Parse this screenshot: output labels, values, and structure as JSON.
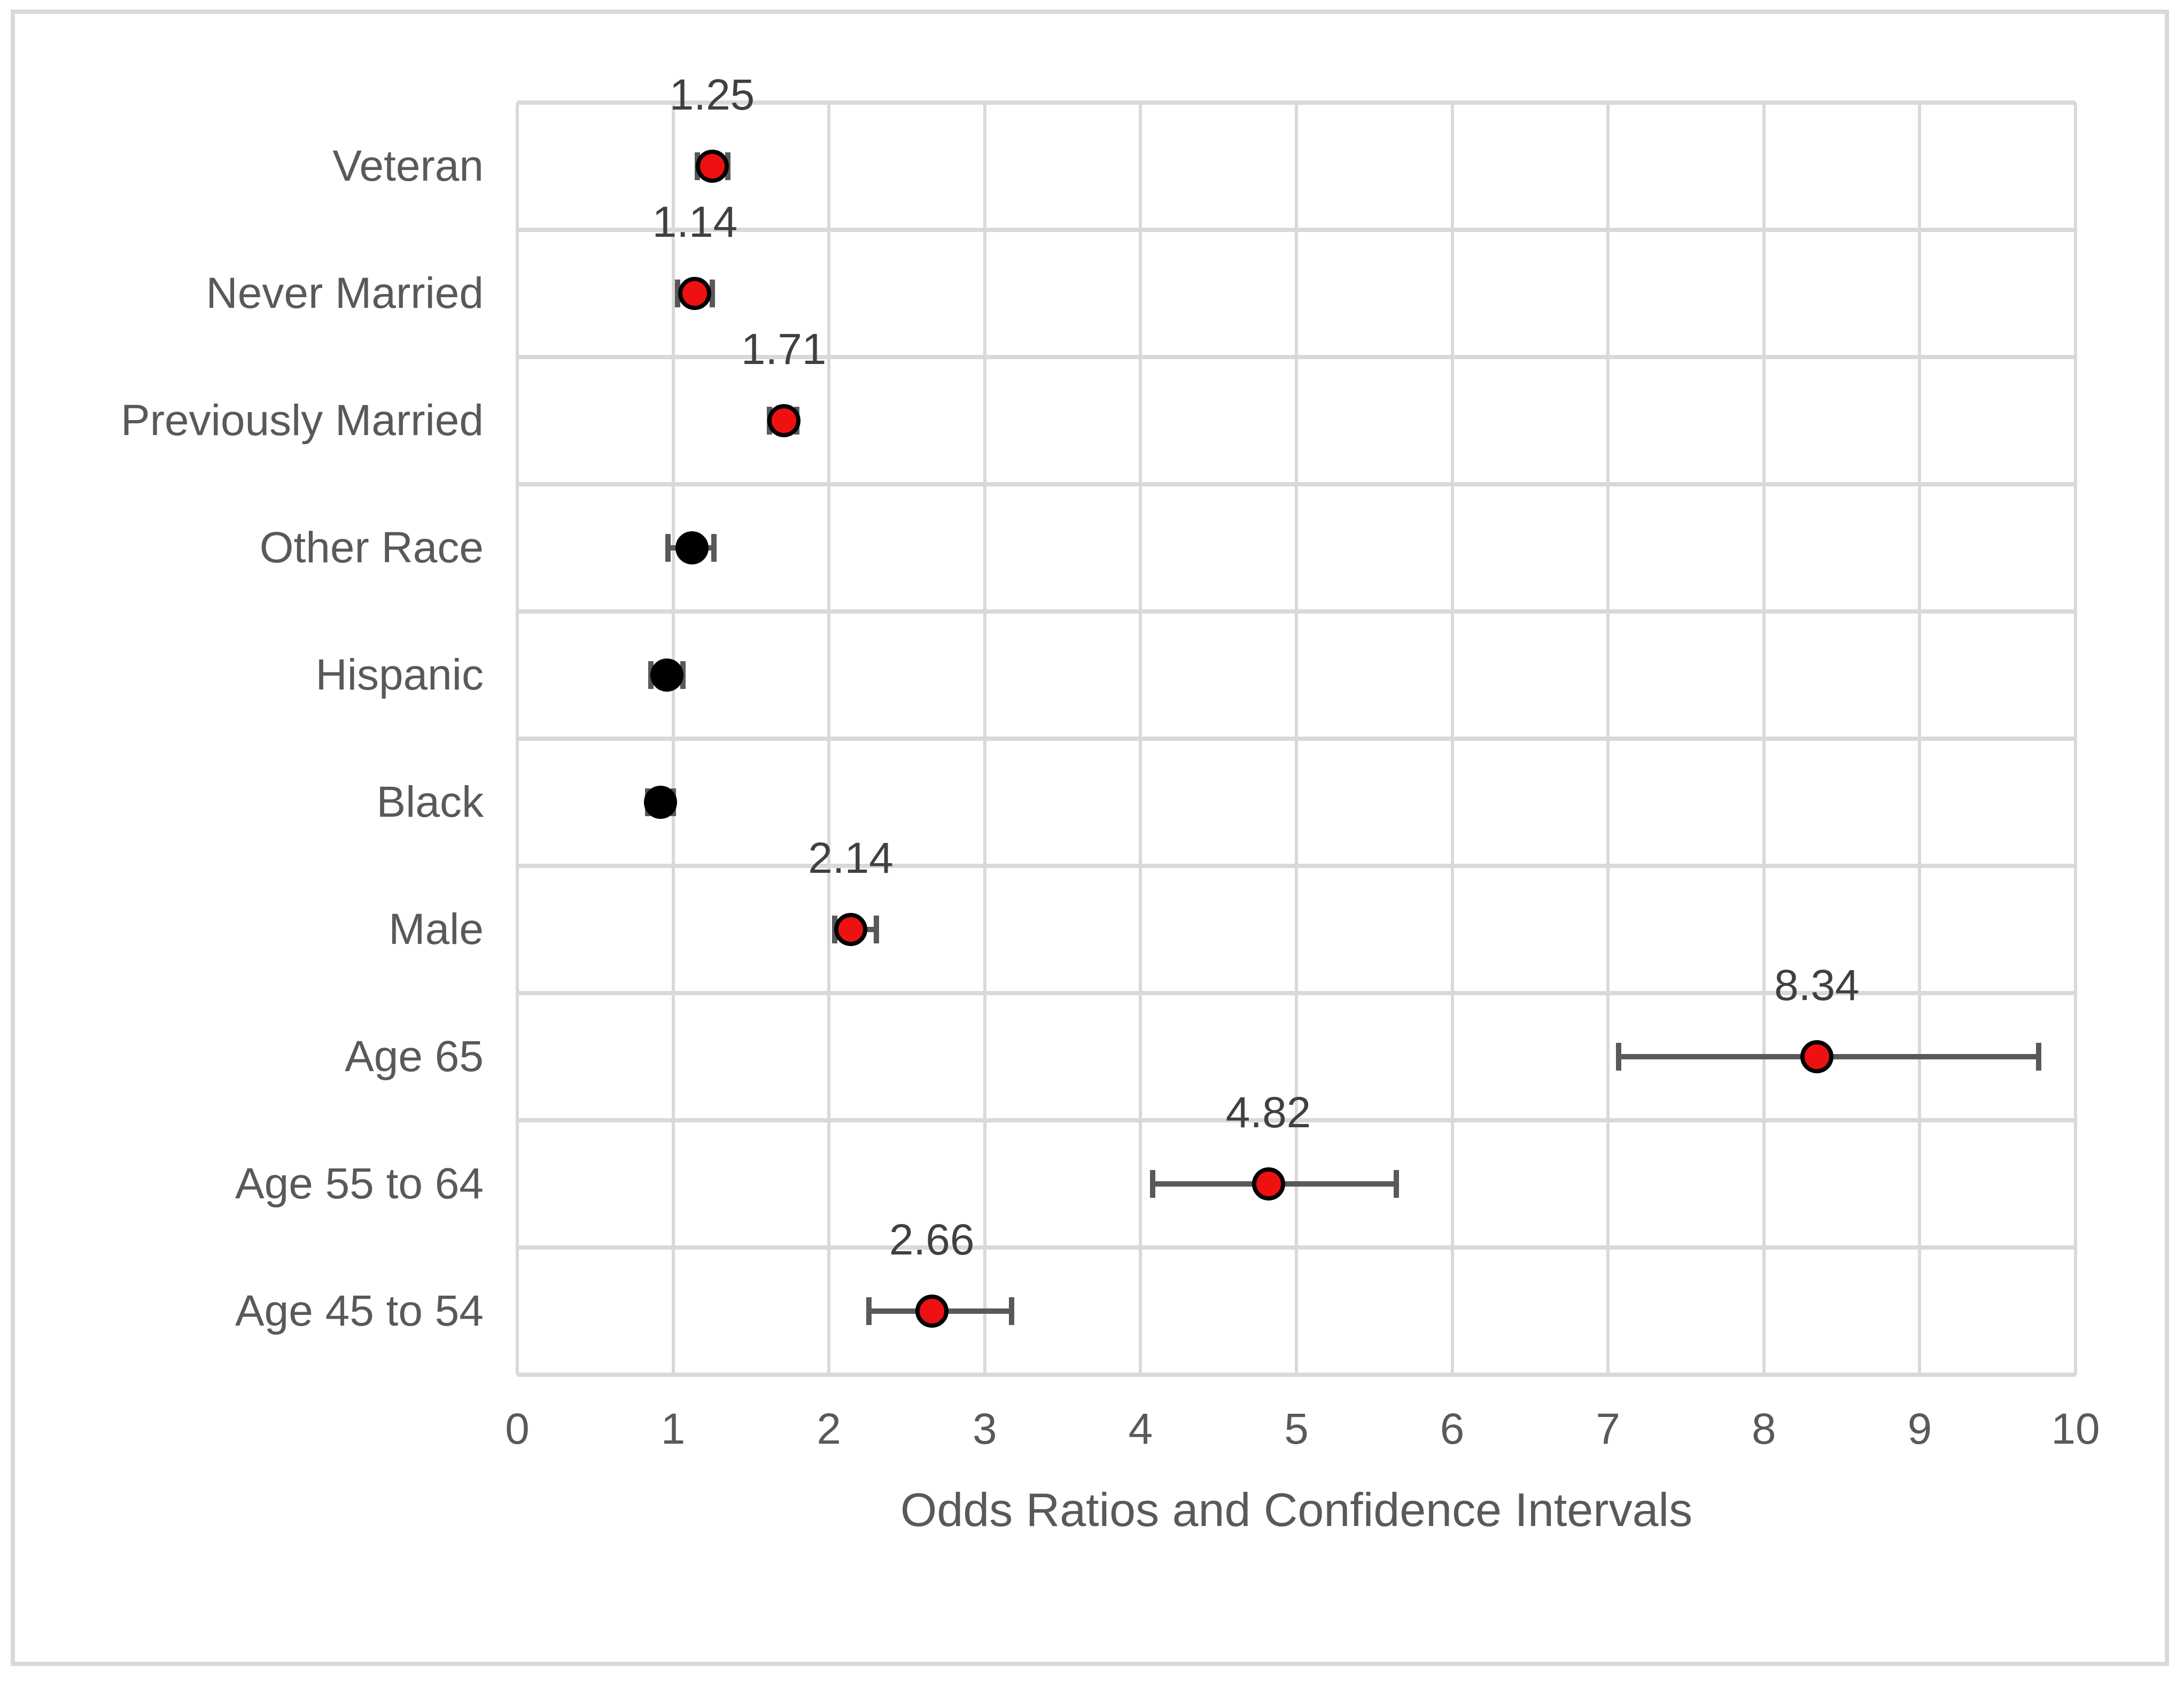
{
  "figure": {
    "background": "#ffffff",
    "border_color": "#d9d9d9"
  },
  "chart_data": {
    "type": "scatter",
    "subtype": "forest-plot-odds-ratios",
    "orientation": "horizontal",
    "title": "",
    "xlabel": "Odds Ratios and Confidence Intervals",
    "ylabel": "",
    "xlim": [
      0,
      10
    ],
    "xticks": [
      0,
      1,
      2,
      3,
      4,
      5,
      6,
      7,
      8,
      9,
      10
    ],
    "grid": true,
    "legend": false,
    "categories": [
      "Veteran",
      "Never Married",
      "Previously Married",
      "Other Race",
      "Hispanic",
      "Black",
      "Male",
      "Age 65",
      "Age 55 to 64",
      "Age 45 to 54"
    ],
    "series": [
      {
        "name": "Odds Ratio",
        "points": [
          {
            "category": "Veteran",
            "or": 1.25,
            "ci_low": 1.14,
            "ci_high": 1.37,
            "marker": "red",
            "value_label": "1.25"
          },
          {
            "category": "Never Married",
            "or": 1.14,
            "ci_low": 1.01,
            "ci_high": 1.27,
            "marker": "red",
            "value_label": "1.14"
          },
          {
            "category": "Previously Married",
            "or": 1.71,
            "ci_low": 1.6,
            "ci_high": 1.81,
            "marker": "red",
            "value_label": "1.71"
          },
          {
            "category": "Other Race",
            "or": 1.12,
            "ci_low": 0.95,
            "ci_high": 1.28,
            "marker": "black",
            "value_label": ""
          },
          {
            "category": "Hispanic",
            "or": 0.96,
            "ci_low": 0.84,
            "ci_high": 1.08,
            "marker": "black",
            "value_label": ""
          },
          {
            "category": "Black",
            "or": 0.92,
            "ci_low": 0.82,
            "ci_high": 1.02,
            "marker": "black",
            "value_label": ""
          },
          {
            "category": "Male",
            "or": 2.14,
            "ci_low": 2.02,
            "ci_high": 2.32,
            "marker": "red",
            "value_label": "2.14"
          },
          {
            "category": "Age 65",
            "or": 8.34,
            "ci_low": 7.05,
            "ci_high": 9.78,
            "marker": "red",
            "value_label": "8.34"
          },
          {
            "category": "Age 55 to 64",
            "or": 4.82,
            "ci_low": 4.06,
            "ci_high": 5.66,
            "marker": "red",
            "value_label": "4.82"
          },
          {
            "category": "Age 45 to 54",
            "or": 2.66,
            "ci_low": 2.24,
            "ci_high": 3.19,
            "marker": "red",
            "value_label": "2.66"
          }
        ]
      }
    ]
  },
  "colors": {
    "marker_red": "#ee1111",
    "marker_black": "#000000",
    "marker_outline": "#000000",
    "error_bar": "#595959",
    "gridline": "#d9d9d9",
    "axis_text": "#595959",
    "value_label_text": "#404040",
    "figure_border": "#d9d9d9"
  }
}
